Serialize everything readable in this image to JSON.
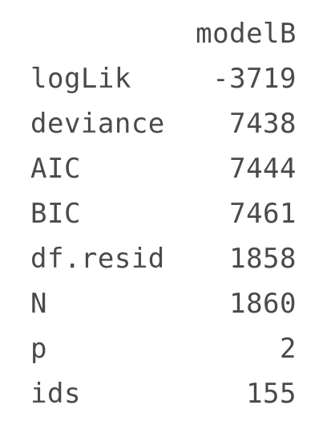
{
  "table": {
    "column_header": "modelB",
    "rows": [
      {
        "name": "logLik",
        "value": "-3719"
      },
      {
        "name": "deviance",
        "value": "7438"
      },
      {
        "name": "AIC",
        "value": "7444"
      },
      {
        "name": "BIC",
        "value": "7461"
      },
      {
        "name": "df.resid",
        "value": "1858"
      },
      {
        "name": "N",
        "value": "1860"
      },
      {
        "name": "p",
        "value": "2"
      },
      {
        "name": "ids",
        "value": "155"
      }
    ]
  },
  "colors": {
    "text": "#4a4a4a",
    "background": "#ffffff"
  }
}
